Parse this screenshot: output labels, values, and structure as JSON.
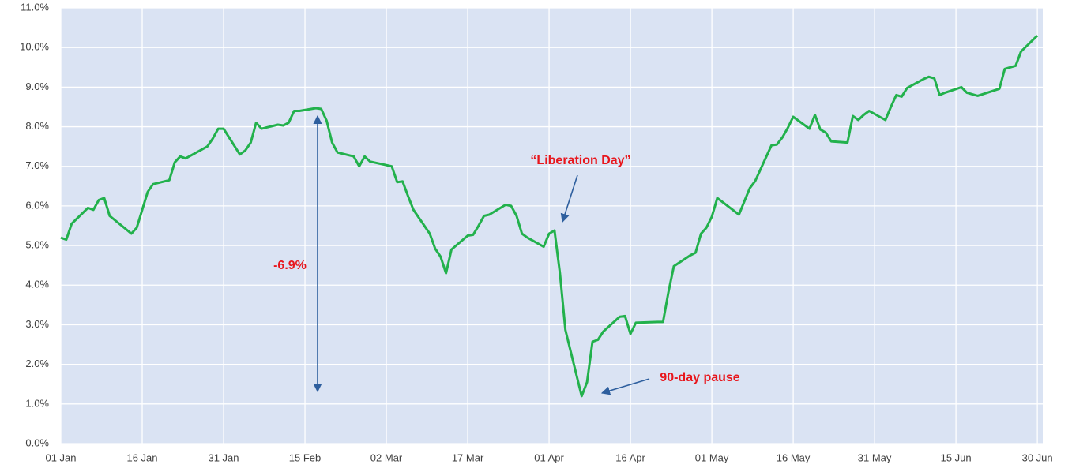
{
  "chart_data": {
    "type": "line",
    "x": [
      0,
      1,
      2,
      5,
      6,
      7,
      8,
      9,
      13,
      14,
      15,
      16,
      17,
      20,
      21,
      22,
      23,
      27,
      28,
      29,
      30,
      33,
      34,
      35,
      36,
      37,
      40,
      41,
      42,
      43,
      44,
      47,
      48,
      49,
      50,
      51,
      54,
      55,
      56,
      57,
      61,
      62,
      63,
      64,
      65,
      68,
      69,
      70,
      71,
      72,
      75,
      76,
      77,
      78,
      79,
      82,
      83,
      84,
      85,
      86,
      89,
      90,
      91,
      92,
      93,
      96,
      97,
      98,
      99,
      100,
      103,
      104,
      105,
      106,
      110,
      111,
      112,
      113,
      116,
      117,
      118,
      119,
      120,
      121,
      125,
      126,
      127,
      128,
      131,
      132,
      133,
      134,
      135,
      138,
      139,
      140,
      141,
      142,
      145,
      146,
      147,
      148,
      149,
      152,
      153,
      154,
      155,
      156,
      159,
      160,
      161,
      162,
      163,
      166,
      167,
      168,
      169,
      173,
      174,
      176,
      177,
      180
    ],
    "series": [
      {
        "color": "#22b14c",
        "values": [
          5.2,
          5.15,
          5.55,
          5.95,
          5.9,
          6.15,
          6.2,
          5.75,
          5.3,
          5.45,
          5.9,
          6.35,
          6.55,
          6.65,
          7.1,
          7.25,
          7.2,
          7.5,
          7.7,
          7.95,
          7.95,
          7.3,
          7.4,
          7.6,
          8.1,
          7.95,
          8.05,
          8.03,
          8.1,
          8.4,
          8.4,
          8.47,
          8.45,
          8.15,
          7.6,
          7.35,
          7.25,
          7.0,
          7.25,
          7.12,
          7.0,
          6.6,
          6.62,
          6.25,
          5.9,
          5.3,
          4.92,
          4.72,
          4.3,
          4.9,
          5.25,
          5.27,
          5.5,
          5.75,
          5.78,
          6.03,
          6.0,
          5.75,
          5.3,
          5.2,
          4.97,
          5.3,
          5.38,
          4.3,
          2.87,
          1.2,
          1.55,
          2.57,
          2.62,
          2.83,
          3.2,
          3.22,
          2.77,
          3.05,
          3.07,
          3.07,
          3.82,
          4.48,
          4.75,
          4.82,
          5.3,
          5.45,
          5.73,
          6.2,
          5.78,
          6.12,
          6.45,
          6.63,
          7.53,
          7.55,
          7.73,
          7.97,
          8.25,
          7.95,
          8.3,
          7.93,
          7.85,
          7.63,
          7.6,
          8.27,
          8.17,
          8.3,
          8.4,
          8.17,
          8.5,
          8.8,
          8.76,
          8.98,
          9.2,
          9.26,
          9.22,
          8.8,
          8.86,
          9.0,
          8.86,
          8.82,
          8.78,
          8.96,
          9.46,
          9.54,
          9.9,
          10.3
        ]
      }
    ],
    "xlim": [
      0,
      181
    ],
    "xticks": [
      {
        "value": 0,
        "label": "01 Jan"
      },
      {
        "value": 15,
        "label": "16 Jan"
      },
      {
        "value": 30,
        "label": "31 Jan"
      },
      {
        "value": 45,
        "label": "15 Feb"
      },
      {
        "value": 60,
        "label": "02 Mar"
      },
      {
        "value": 75,
        "label": "17 Mar"
      },
      {
        "value": 90,
        "label": "01 Apr"
      },
      {
        "value": 105,
        "label": "16 Apr"
      },
      {
        "value": 120,
        "label": "01 May"
      },
      {
        "value": 135,
        "label": "16 May"
      },
      {
        "value": 150,
        "label": "31 May"
      },
      {
        "value": 165,
        "label": "15 Jun"
      },
      {
        "value": 180,
        "label": "30 Jun"
      }
    ],
    "ylim": [
      0,
      11
    ],
    "yticks": [
      {
        "value": 0,
        "label": "0.0%"
      },
      {
        "value": 1,
        "label": "1.0%"
      },
      {
        "value": 2,
        "label": "2.0%"
      },
      {
        "value": 3,
        "label": "3.0%"
      },
      {
        "value": 4,
        "label": "4.0%"
      },
      {
        "value": 5,
        "label": "5.0%"
      },
      {
        "value": 6,
        "label": "6.0%"
      },
      {
        "value": 7,
        "label": "7.0%"
      },
      {
        "value": 8,
        "label": "8.0%"
      },
      {
        "value": 9,
        "label": "9.0%"
      },
      {
        "value": 10,
        "label": "10.0%"
      },
      {
        "value": 11,
        "label": "11.0%"
      }
    ],
    "grid": true,
    "annotations": [
      {
        "text": "“Liberation Day”"
      },
      {
        "text": "90-day pause"
      },
      {
        "text": "-6.9%"
      }
    ]
  }
}
